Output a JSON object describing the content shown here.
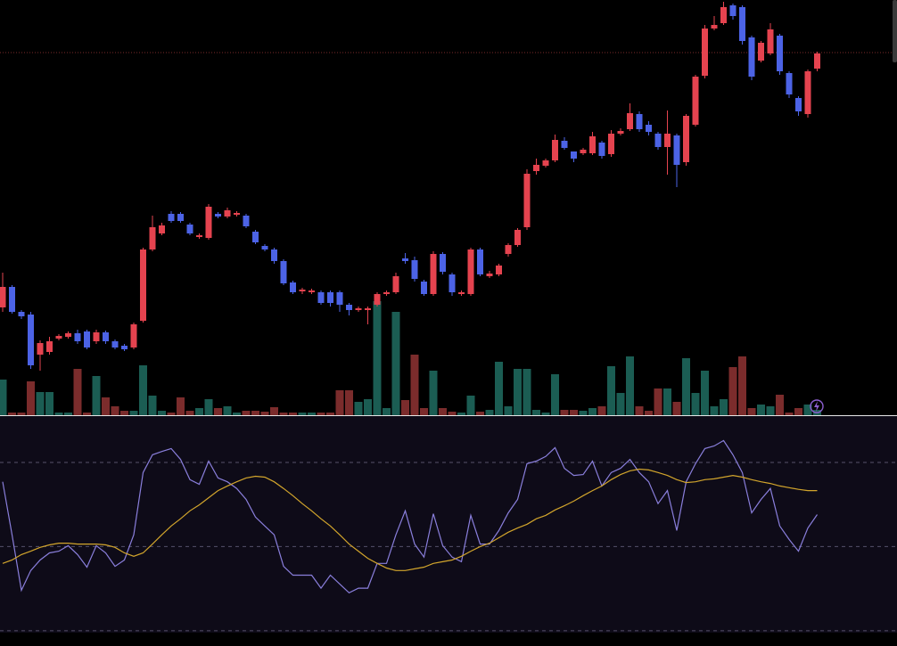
{
  "chart_data": {
    "type": "candlestick",
    "up_color": "#e5434f",
    "down_color": "#4c63e6",
    "ylim": [
      0,
      466
    ],
    "price_line": 407,
    "open": [
      121,
      144,
      116,
      113,
      68,
      71,
      86,
      88,
      92,
      94,
      83,
      93,
      83,
      78,
      76,
      106,
      186,
      204,
      226,
      226,
      214,
      200,
      199,
      226,
      223,
      225,
      224,
      206,
      190,
      186,
      173,
      149,
      139,
      138,
      138,
      138,
      138,
      124,
      118,
      118,
      124,
      136,
      138,
      176,
      174,
      150,
      136,
      181,
      158,
      136,
      136,
      186,
      156,
      158,
      181,
      191,
      211,
      274,
      280,
      286,
      308,
      296,
      294,
      294,
      306,
      293,
      316,
      321,
      338,
      326,
      316,
      301,
      314,
      284,
      326,
      381,
      434,
      440,
      460,
      458,
      424,
      398,
      406,
      426,
      384,
      356,
      338,
      389
    ],
    "close": [
      144,
      116,
      111,
      56,
      81,
      83,
      89,
      92,
      83,
      76,
      93,
      83,
      76,
      74,
      102,
      186,
      211,
      213,
      218,
      218,
      204,
      202,
      234,
      223,
      230,
      227,
      212,
      194,
      186,
      173,
      148,
      138,
      141,
      140,
      126,
      126,
      124,
      118,
      120,
      120,
      136,
      138,
      156,
      173,
      153,
      136,
      181,
      161,
      138,
      138,
      186,
      158,
      159,
      168,
      191,
      208,
      271,
      281,
      286,
      309,
      300,
      288,
      298,
      313,
      291,
      316,
      319,
      339,
      321,
      318,
      301,
      316,
      281,
      336,
      380,
      434,
      438,
      458,
      448,
      420,
      380,
      418,
      433,
      386,
      360,
      341,
      386,
      406
    ],
    "high": [
      160,
      146,
      118,
      116,
      84,
      88,
      91,
      94,
      96,
      96,
      96,
      95,
      85,
      80,
      104,
      188,
      224,
      216,
      229,
      228,
      216,
      204,
      237,
      228,
      233,
      229,
      226,
      208,
      192,
      188,
      175,
      151,
      143,
      142,
      140,
      140,
      140,
      126,
      122,
      122,
      138,
      140,
      160,
      182,
      178,
      152,
      184,
      183,
      160,
      140,
      188,
      188,
      162,
      170,
      193,
      210,
      276,
      288,
      288,
      315,
      312,
      292,
      300,
      318,
      308,
      320,
      322,
      350,
      341,
      330,
      318,
      342,
      316,
      338,
      382,
      438,
      448,
      464,
      462,
      460,
      426,
      420,
      440,
      428,
      386,
      358,
      388,
      408
    ],
    "low": [
      116,
      114,
      108,
      52,
      50,
      68,
      84,
      86,
      80,
      74,
      80,
      80,
      74,
      72,
      74,
      104,
      184,
      202,
      216,
      216,
      202,
      198,
      197,
      221,
      221,
      223,
      210,
      192,
      184,
      170,
      146,
      136,
      136,
      136,
      124,
      122,
      116,
      112,
      116,
      102,
      122,
      134,
      136,
      170,
      150,
      134,
      134,
      158,
      134,
      134,
      134,
      156,
      154,
      156,
      178,
      189,
      208,
      270,
      278,
      284,
      298,
      284,
      292,
      292,
      288,
      290,
      314,
      319,
      318,
      314,
      298,
      270,
      256,
      280,
      324,
      378,
      432,
      438,
      444,
      416,
      376,
      396,
      404,
      382,
      356,
      336,
      334,
      386
    ],
    "volume": {
      "up_color": "#1b5d53",
      "down_color": "#7b2c2c",
      "ylim": [
        0,
        466
      ],
      "values": [
        40,
        3,
        3,
        38,
        26,
        26,
        3,
        3,
        52,
        3,
        44,
        20,
        10,
        5,
        5,
        56,
        22,
        5,
        3,
        20,
        5,
        8,
        18,
        8,
        10,
        3,
        5,
        5,
        4,
        9,
        3,
        3,
        3,
        3,
        3,
        3,
        28,
        28,
        15,
        18,
        128,
        8,
        116,
        17,
        68,
        8,
        50,
        8,
        4,
        3,
        22,
        4,
        6,
        60,
        10,
        52,
        52,
        6,
        3,
        46,
        6,
        6,
        5,
        8,
        10,
        55,
        25,
        66,
        10,
        5,
        30,
        30,
        15,
        64,
        25,
        50,
        10,
        18,
        54,
        66,
        8,
        12,
        10,
        23,
        3,
        8,
        12,
        6
      ]
    },
    "rsi": {
      "ylim": [
        27,
        81
      ],
      "yticks": [
        70,
        50,
        30
      ],
      "series": [
        {
          "color": "#8a7fdc",
          "values": [
            65.4,
            52.8,
            39.6,
            44.3,
            46.8,
            48.5,
            48.9,
            50.2,
            48.1,
            45.1,
            50.2,
            48.5,
            45.3,
            46.8,
            52.8,
            67.6,
            71.8,
            72.6,
            73.3,
            70.7,
            65.9,
            64.8,
            70.3,
            66.3,
            65.4,
            63.8,
            61.2,
            57.0,
            54.9,
            52.8,
            45.3,
            43.2,
            43.2,
            43.2,
            40.1,
            43.2,
            41.1,
            39.0,
            40.1,
            40.1,
            46.0,
            46.0,
            52.8,
            58.5,
            50.6,
            47.5,
            57.8,
            50.2,
            47.5,
            46.4,
            57.4,
            50.6,
            50.6,
            53.8,
            58.0,
            61.2,
            69.7,
            70.3,
            71.4,
            73.5,
            68.6,
            66.9,
            67.1,
            70.3,
            64.4,
            67.6,
            68.6,
            70.7,
            67.6,
            65.4,
            60.2,
            63.3,
            53.8,
            65.4,
            69.7,
            73.3,
            73.9,
            75.2,
            71.8,
            67.6,
            58.0,
            61.2,
            63.8,
            54.9,
            51.7,
            48.9,
            54.4,
            57.6
          ]
        },
        {
          "color": "#d2a52c",
          "values": [
            46.0,
            46.8,
            48.1,
            48.9,
            49.8,
            50.4,
            50.8,
            50.8,
            50.6,
            50.6,
            50.6,
            50.4,
            49.8,
            48.5,
            47.7,
            48.5,
            50.6,
            52.8,
            54.9,
            56.6,
            58.5,
            59.9,
            61.6,
            63.3,
            64.4,
            65.4,
            66.3,
            66.7,
            66.5,
            65.4,
            63.8,
            62.1,
            60.2,
            58.5,
            56.6,
            54.9,
            52.8,
            50.6,
            48.9,
            47.2,
            46.0,
            44.9,
            44.3,
            44.3,
            44.7,
            45.1,
            46.0,
            46.4,
            46.8,
            47.7,
            48.9,
            50.0,
            50.8,
            52.1,
            53.4,
            54.4,
            55.3,
            56.6,
            57.4,
            58.7,
            59.7,
            60.8,
            62.1,
            63.3,
            64.4,
            65.9,
            67.1,
            68.0,
            68.4,
            68.2,
            67.6,
            66.9,
            65.9,
            65.2,
            65.4,
            65.9,
            66.1,
            66.5,
            66.9,
            66.5,
            65.9,
            65.4,
            65.0,
            64.4,
            64.0,
            63.6,
            63.3,
            63.3
          ]
        }
      ]
    }
  }
}
